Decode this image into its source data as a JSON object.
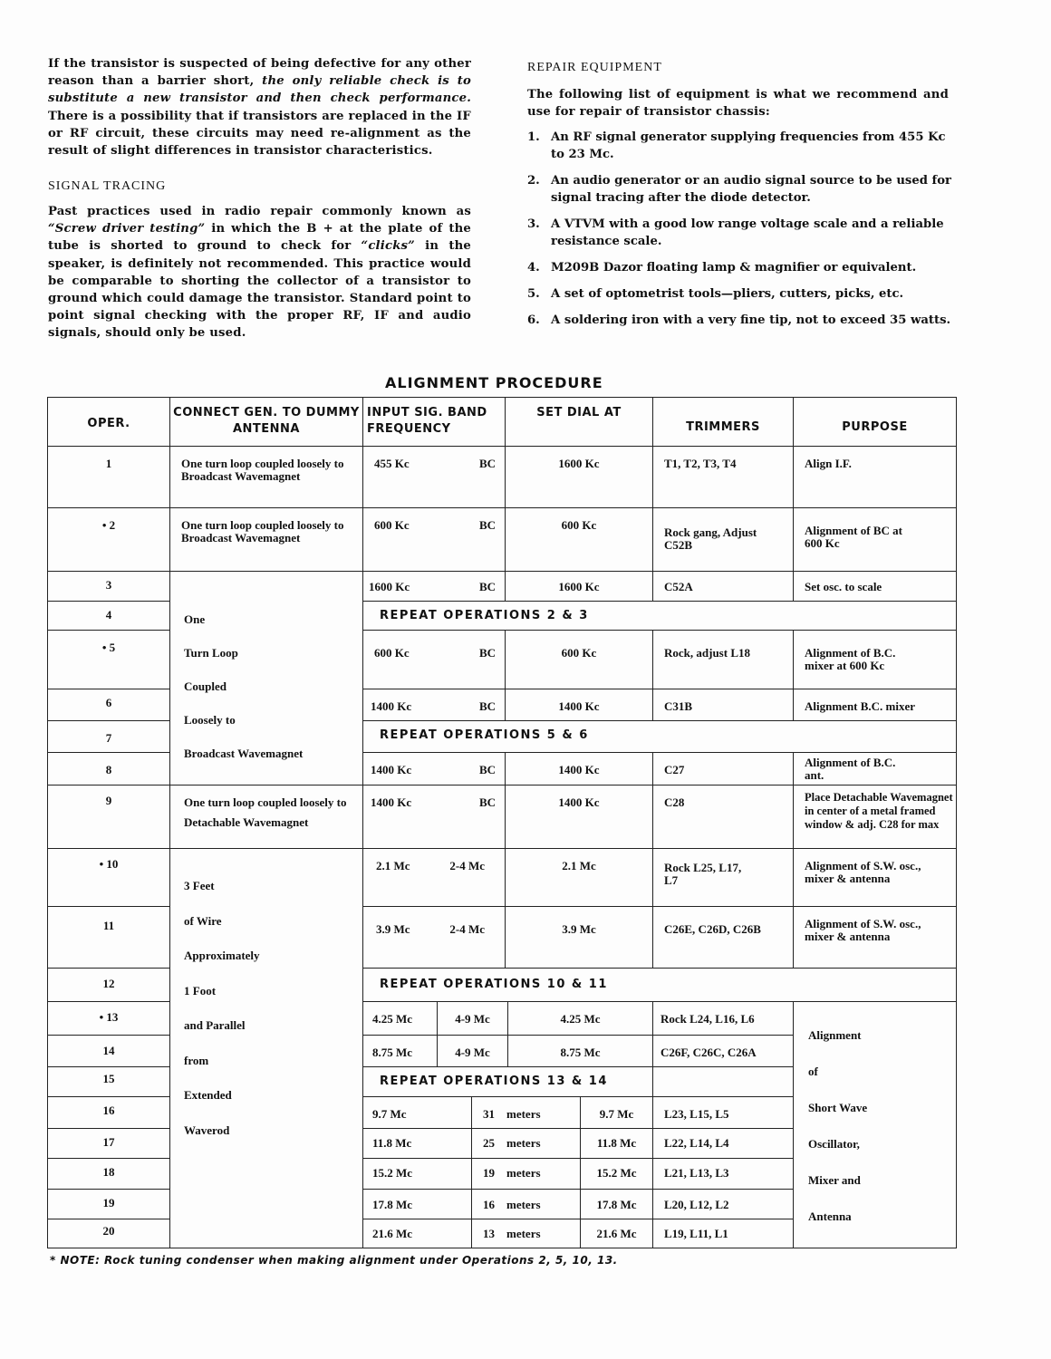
{
  "intro": {
    "p1_a": "If the transistor is suspected of being defective for any other reason than a barrier short, ",
    "p1_b": "the only reliable check is to substitute a new transistor and then check performance.",
    "p1_c": " There is a possibility that if transistors are replaced in the IF or RF circuit, these circuits may need re-alignment as the result of slight differences in transistor characteristics."
  },
  "signal_tracing": {
    "heading": "SIGNAL TRACING",
    "a": "Past practices used in radio repair commonly known as ",
    "b": "“Screw driver testing”",
    "c": " in which the B + at the plate of the tube is shorted to ground to check for ",
    "d": "“clicks”",
    "e": " in the speaker, is definitely not recommended. This practice would be comparable to shorting the collector of a transistor to ground which could damage the transistor. Standard point to point signal checking with the proper RF, IF and audio signals, should only be used."
  },
  "repair": {
    "heading": "REPAIR EQUIPMENT",
    "intro": "The following list of equipment is what we recommend and use for repair of transistor chassis:",
    "items": [
      {
        "n": "1.",
        "t": "An RF signal generator supplying frequencies from 455 Kc to 23 Mc."
      },
      {
        "n": "2.",
        "t": "An audio generator or an audio signal source to be used for signal tracing after the diode detector."
      },
      {
        "n": "3.",
        "t": "A VTVM with a good low range voltage scale and a reliable resistance scale."
      },
      {
        "n": "4.",
        "t": "M209B Dazor floating lamp & magnifier or equivalent."
      },
      {
        "n": "5.",
        "t": "A set of optometrist tools—pliers, cutters, picks, etc."
      },
      {
        "n": "6.",
        "t": "A soldering iron with a very fine tip, not to exceed 35 watts."
      }
    ]
  },
  "table": {
    "title": "ALIGNMENT PROCEDURE",
    "headers": {
      "oper": "OPER.",
      "connect": "CONNECT GEN. TO DUMMY ANTENNA",
      "input": "INPUT SIG. BAND FREQUENCY",
      "dial": "SET DIAL AT",
      "trimmers": "TRIMMERS",
      "purpose": "PURPOSE"
    },
    "oper": [
      "1",
      "• 2",
      "3",
      "4",
      "• 5",
      "6",
      "7",
      "8",
      "9",
      "• 10",
      "11",
      "12",
      "• 13",
      "14",
      "15",
      "16",
      "17",
      "18",
      "19",
      "20"
    ],
    "connect": {
      "r1": "One turn loop coupled loosely to Broadcast Wavemagnet",
      "r2": "One turn loop coupled loosely to Broadcast Wavemagnet",
      "g1": [
        "One",
        "Turn Loop",
        "Coupled",
        "Loosely to",
        "Broadcast Wavemagnet"
      ],
      "r9": "One turn loop coupled loosely to Detachable Wavemagnet",
      "g2": [
        "3 Feet",
        "of Wire",
        "Approximately",
        "1 Foot",
        "and Parallel",
        "from",
        "Extended",
        "Waverod"
      ]
    },
    "rows": {
      "r1": {
        "freq": "455 Kc",
        "band": "BC",
        "dial": "1600 Kc",
        "trim": "T1, T2, T3, T4",
        "purpose": "Align I.F."
      },
      "r2": {
        "freq": "600 Kc",
        "band": "BC",
        "dial": "600 Kc",
        "trim": "Rock gang, Adjust C52B",
        "purpose": "Alignment of BC at 600 Kc"
      },
      "r3": {
        "freq": "1600 Kc",
        "band": "BC",
        "dial": "1600 Kc",
        "trim": "C52A",
        "purpose": "Set osc. to scale"
      },
      "r4": {
        "repeat": "REPEAT OPERATIONS 2 & 3"
      },
      "r5": {
        "freq": "600 Kc",
        "band": "BC",
        "dial": "600 Kc",
        "trim": "Rock, adjust L18",
        "purpose": "Alignment of B.C. mixer at 600 Kc"
      },
      "r6": {
        "freq": "1400 Kc",
        "band": "BC",
        "dial": "1400 Kc",
        "trim": "C31B",
        "purpose": "Alignment B.C. mixer"
      },
      "r7": {
        "repeat": "REPEAT OPERATIONS 5 & 6"
      },
      "r8": {
        "freq": "1400 Kc",
        "band": "BC",
        "dial": "1400 Kc",
        "trim": "C27",
        "purpose": "Alignment of B.C. ant."
      },
      "r9": {
        "freq": "1400 Kc",
        "band": "BC",
        "dial": "1400 Kc",
        "trim": "C28",
        "purpose": "Place Detachable Wavemagnet in center of a metal framed window & adj. C28 for max"
      },
      "r10": {
        "freq": "2.1 Mc",
        "band": "2-4 Mc",
        "dial": "2.1 Mc",
        "trim": "Rock L25, L17, L7",
        "purpose": "Alignment of S.W. osc., mixer & antenna"
      },
      "r11": {
        "freq": "3.9 Mc",
        "band": "2-4 Mc",
        "dial": "3.9 Mc",
        "trim": "C26E, C26D, C26B",
        "purpose": "Alignment of S.W. osc., mixer & antenna"
      },
      "r12": {
        "repeat": "REPEAT OPERATIONS 10 & 11"
      },
      "r13": {
        "freq": "4.25 Mc",
        "band": "4-9 Mc",
        "dial": "4.25 Mc",
        "trim": "Rock L24, L16, L6"
      },
      "r14": {
        "freq": "8.75 Mc",
        "band": "4-9 Mc",
        "dial": "8.75 Mc",
        "trim": "C26F, C26C, C26A"
      },
      "r15": {
        "repeat": "REPEAT OPERATIONS 13 & 14"
      },
      "r16": {
        "freq": "9.7 Mc",
        "meters": "31",
        "unit": "meters",
        "dial": "9.7 Mc",
        "trim": "L23, L15, L5"
      },
      "r17": {
        "freq": "11.8 Mc",
        "meters": "25",
        "unit": "meters",
        "dial": "11.8 Mc",
        "trim": "L22, L14, L4"
      },
      "r18": {
        "freq": "15.2 Mc",
        "meters": "19",
        "unit": "meters",
        "dial": "15.2 Mc",
        "trim": "L21, L13, L3"
      },
      "r19": {
        "freq": "17.8 Mc",
        "meters": "16",
        "unit": "meters",
        "dial": "17.8 Mc",
        "trim": "L20, L12, L2"
      },
      "r20": {
        "freq": "21.6 Mc",
        "meters": "13",
        "unit": "meters",
        "dial": "21.6 Mc",
        "trim": "L19, L11, L1"
      }
    },
    "sw_purpose": [
      "Alignment",
      "of",
      "Short Wave",
      "Oscillator,",
      "Mixer and",
      "Antenna"
    ]
  },
  "note": "* NOTE: Rock tuning condenser when making alignment under Operations 2, 5, 10, 13."
}
